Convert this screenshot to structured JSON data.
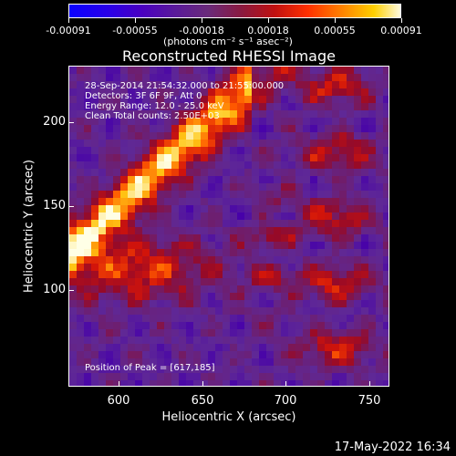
{
  "colorbar": {
    "ticks": [
      "-0.00091",
      "-0.00055",
      "-0.00018",
      "0.00018",
      "0.00055",
      "0.00091"
    ],
    "units": "(photons cm⁻² s⁻¹ asec⁻²)"
  },
  "title": "Reconstructed RHESSI Image",
  "info": {
    "time": "28-Sep-2014 21:54:32.000 to 21:55:00.000",
    "detectors": "Detectors: 3F 6F 9F, Att 0",
    "energy": "Energy Range: 12.0 - 25.0 keV",
    "clean": "Clean     Total counts: 2.50E+03",
    "peak": "Position of Peak = [617,185]"
  },
  "axes": {
    "xlabel": "Heliocentric X (arcsec)",
    "ylabel": "Heliocentric Y (arcsec)",
    "xticks": [
      "600",
      "650",
      "700",
      "750"
    ],
    "yticks": [
      "200",
      "150",
      "100"
    ],
    "xrange": [
      570,
      762
    ],
    "yrange": [
      42,
      234
    ]
  },
  "timestamp": "17-May-2022 16:34"
}
